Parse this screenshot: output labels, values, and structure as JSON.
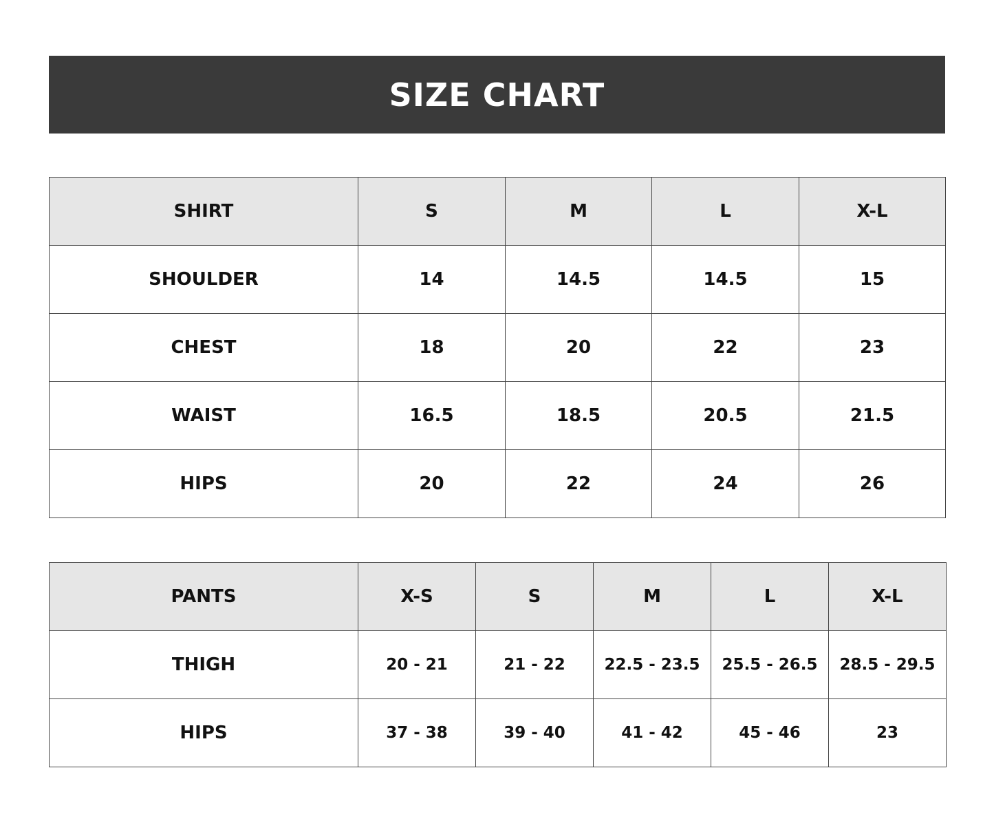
{
  "title": "SIZE CHART",
  "shirt": {
    "header": [
      "SHIRT",
      "S",
      "M",
      "L",
      "X-L"
    ],
    "rows": [
      [
        "SHOULDER",
        "14",
        "14.5",
        "14.5",
        "15"
      ],
      [
        "CHEST",
        "18",
        "20",
        "22",
        "23"
      ],
      [
        "WAIST",
        "16.5",
        "18.5",
        "20.5",
        "21.5"
      ],
      [
        "HIPS",
        "20",
        "22",
        "24",
        "26"
      ]
    ]
  },
  "pants": {
    "header": [
      "PANTS",
      "X-S",
      "S",
      "M",
      "L",
      "X-L"
    ],
    "rows": [
      [
        "THIGH",
        "20 - 21",
        "21 - 22",
        "22.5 - 23.5",
        "25.5 - 26.5",
        "28.5 - 29.5"
      ],
      [
        "HIPS",
        "37 - 38",
        "39 - 40",
        "41 - 42",
        "45 - 46",
        "23"
      ]
    ]
  },
  "colors": {
    "banner": "#3a3a3a",
    "header_row": "#e6e6e6",
    "border": "#444444"
  }
}
